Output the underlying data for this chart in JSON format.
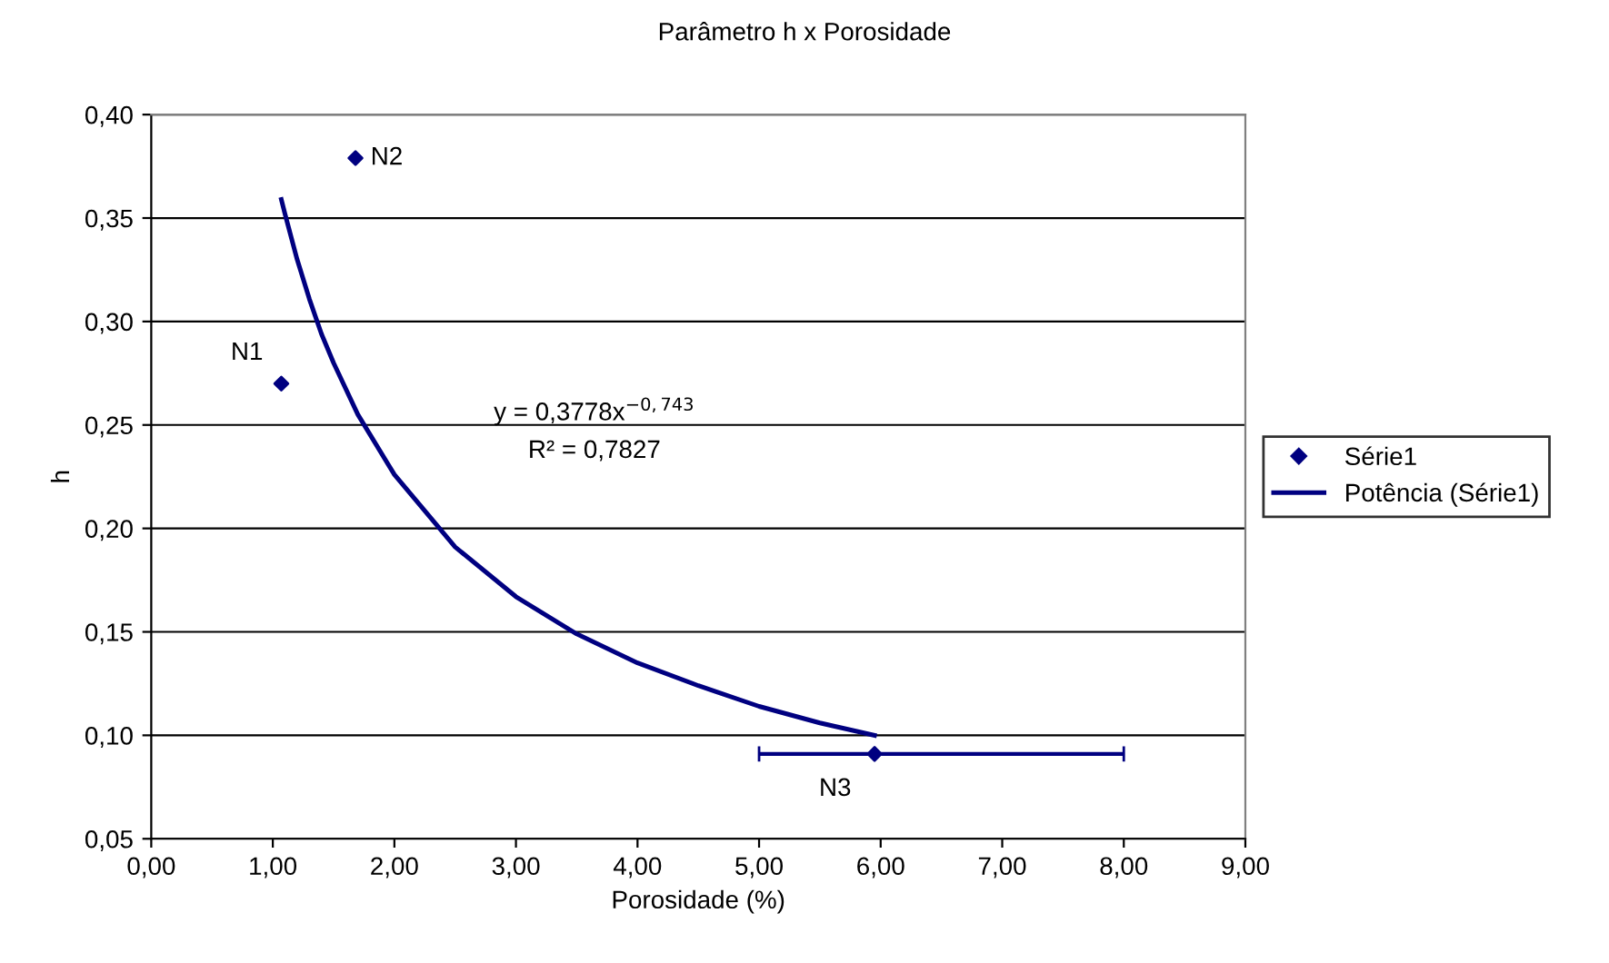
{
  "chart_data": {
    "type": "scatter",
    "title": "Parâmetro h x Porosidade",
    "xlabel": "Porosidade (%)",
    "ylabel": "h",
    "xlim": [
      0,
      9
    ],
    "xticks": [
      {
        "value": 0,
        "label": "0,00"
      },
      {
        "value": 1,
        "label": "1,00"
      },
      {
        "value": 2,
        "label": "2,00"
      },
      {
        "value": 3,
        "label": "3,00"
      },
      {
        "value": 4,
        "label": "4,00"
      },
      {
        "value": 5,
        "label": "5,00"
      },
      {
        "value": 6,
        "label": "6,00"
      },
      {
        "value": 7,
        "label": "7,00"
      },
      {
        "value": 8,
        "label": "8,00"
      },
      {
        "value": 9,
        "label": "9,00"
      }
    ],
    "ylim": [
      0.05,
      0.4
    ],
    "yticks": [
      {
        "value": 0.05,
        "label": "0,05"
      },
      {
        "value": 0.1,
        "label": "0,10"
      },
      {
        "value": 0.15,
        "label": "0,15"
      },
      {
        "value": 0.2,
        "label": "0,20"
      },
      {
        "value": 0.25,
        "label": "0,25"
      },
      {
        "value": 0.3,
        "label": "0,30"
      },
      {
        "value": 0.35,
        "label": "0,35"
      },
      {
        "value": 0.4,
        "label": "0,40"
      }
    ],
    "grid": "y",
    "legend": "right",
    "series": [
      {
        "name": "Série1",
        "marker": "diamond",
        "color": "#000080",
        "x": [
          1.07,
          1.68,
          5.95
        ],
        "values": [
          0.27,
          0.379,
          0.091
        ],
        "xerrors": [
          null,
          null,
          [
            5.0,
            8.0
          ]
        ]
      },
      {
        "name": "Potência (Série1)",
        "type": "line",
        "marker": "none",
        "line_style": "solid",
        "color": "#000080",
        "x": [
          1.07,
          1.1,
          1.2,
          1.3,
          1.4,
          1.5,
          1.7,
          2,
          2.5,
          3,
          3.5,
          4,
          4.5,
          5,
          5.5,
          5.95
        ],
        "values": [
          0.359,
          0.352,
          0.33,
          0.311,
          0.294,
          0.28,
          0.255,
          0.226,
          0.191,
          0.167,
          0.149,
          0.135,
          0.124,
          0.114,
          0.106,
          0.1
        ]
      }
    ],
    "annotations": [
      {
        "text": "N1",
        "x": 1.07,
        "y": 0.27
      },
      {
        "text": "N2",
        "x": 1.68,
        "y": 0.379
      },
      {
        "text": "N3",
        "x": 5.95,
        "y": 0.091
      },
      "y = 0,3778x$^{−0,743}$",
      "R² = 0,7827"
    ]
  }
}
